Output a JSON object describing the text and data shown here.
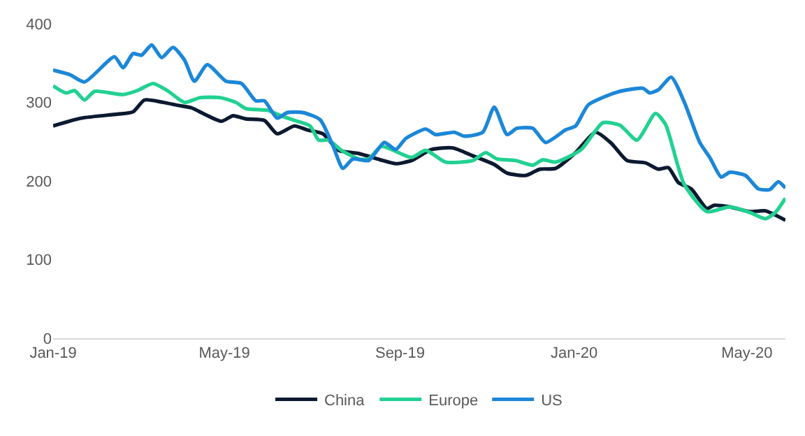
{
  "chart_data": {
    "type": "line",
    "xlim": [
      "2019-01-01",
      "2020-05-28"
    ],
    "xticks": [
      {
        "value": "2019-01-01",
        "label": "Jan-19"
      },
      {
        "value": "2019-05-01",
        "label": "May-19"
      },
      {
        "value": "2019-09-01",
        "label": "Sep-19"
      },
      {
        "value": "2020-01-01",
        "label": "Jan-20"
      },
      {
        "value": "2020-05-01",
        "label": "May-20"
      }
    ],
    "ylim": [
      0,
      400
    ],
    "yticks": [
      0,
      100,
      200,
      300,
      400
    ],
    "grid": false,
    "legend": "bottom",
    "marker": "none",
    "line_style": "solid",
    "series": [
      {
        "name": "China",
        "color": "#0c1a30",
        "x": [
          "2019-01-01",
          "2019-01-21",
          "2019-02-15",
          "2019-02-26",
          "2019-03-06",
          "2019-03-19",
          "2019-03-30",
          "2019-04-08",
          "2019-04-17",
          "2019-04-29",
          "2019-05-07",
          "2019-05-16",
          "2019-05-29",
          "2019-06-07",
          "2019-06-19",
          "2019-06-28",
          "2019-07-09",
          "2019-07-20",
          "2019-08-03",
          "2019-08-18",
          "2019-08-29",
          "2019-09-09",
          "2019-09-23",
          "2019-10-08",
          "2019-10-22",
          "2019-11-06",
          "2019-11-15",
          "2019-11-28",
          "2019-12-08",
          "2019-12-19",
          "2020-01-02",
          "2020-01-16",
          "2020-01-27",
          "2020-02-07",
          "2020-02-20",
          "2020-02-29",
          "2020-03-07",
          "2020-03-14",
          "2020-03-23",
          "2020-04-03",
          "2020-04-08",
          "2020-04-19",
          "2020-05-03",
          "2020-05-14",
          "2020-05-28"
        ],
        "values": [
          270,
          280,
          285,
          288,
          303,
          300,
          296,
          293,
          285,
          276,
          283,
          279,
          277,
          260,
          270,
          265,
          260,
          239,
          235,
          227,
          222,
          226,
          240,
          242,
          232,
          221,
          210,
          207,
          215,
          216,
          236,
          262,
          248,
          226,
          223,
          215,
          217,
          198,
          190,
          165,
          169,
          167,
          161,
          162,
          150
        ]
      },
      {
        "name": "Europe",
        "color": "#22d192",
        "x": [
          "2019-01-01",
          "2019-01-10",
          "2019-01-16",
          "2019-01-23",
          "2019-01-30",
          "2019-02-19",
          "2019-03-01",
          "2019-03-12",
          "2019-03-22",
          "2019-04-03",
          "2019-04-14",
          "2019-04-28",
          "2019-05-09",
          "2019-05-16",
          "2019-05-31",
          "2019-06-11",
          "2019-06-21",
          "2019-06-30",
          "2019-07-06",
          "2019-07-13",
          "2019-07-22",
          "2019-08-03",
          "2019-08-10",
          "2019-08-19",
          "2019-09-09",
          "2019-09-19",
          "2019-10-03",
          "2019-10-22",
          "2019-10-31",
          "2019-11-08",
          "2019-11-21",
          "2019-12-03",
          "2019-12-10",
          "2019-12-19",
          "2020-01-06",
          "2020-01-21",
          "2020-02-02",
          "2020-02-14",
          "2020-02-27",
          "2020-03-05",
          "2020-03-18",
          "2020-04-03",
          "2020-04-19",
          "2020-05-03",
          "2020-05-14",
          "2020-05-21",
          "2020-05-28"
        ],
        "values": [
          321,
          312,
          315,
          303,
          314,
          310,
          315,
          324,
          315,
          300,
          306,
          306,
          300,
          292,
          290,
          282,
          276,
          270,
          252,
          252,
          239,
          228,
          228,
          244,
          230,
          239,
          224,
          226,
          236,
          228,
          226,
          220,
          227,
          224,
          240,
          274,
          271,
          252,
          286,
          272,
          196,
          161,
          167,
          160,
          152,
          160,
          178
        ]
      },
      {
        "name": "US",
        "color": "#1c87d8",
        "x": [
          "2019-01-01",
          "2019-01-13",
          "2019-01-23",
          "2019-02-13",
          "2019-02-19",
          "2019-02-26",
          "2019-03-04",
          "2019-03-11",
          "2019-03-18",
          "2019-03-26",
          "2019-04-03",
          "2019-04-10",
          "2019-04-19",
          "2019-05-02",
          "2019-05-13",
          "2019-05-23",
          "2019-05-29",
          "2019-06-07",
          "2019-06-14",
          "2019-06-25",
          "2019-07-07",
          "2019-07-16",
          "2019-07-23",
          "2019-07-30",
          "2019-08-10",
          "2019-08-21",
          "2019-08-29",
          "2019-09-05",
          "2019-09-19",
          "2019-09-26",
          "2019-10-09",
          "2019-10-16",
          "2019-10-29",
          "2019-11-06",
          "2019-11-15",
          "2019-11-22",
          "2019-12-03",
          "2019-12-12",
          "2019-12-26",
          "2020-01-02",
          "2020-01-11",
          "2020-01-31",
          "2020-02-18",
          "2020-02-23",
          "2020-02-29",
          "2020-03-09",
          "2020-03-18",
          "2020-03-29",
          "2020-04-05",
          "2020-04-13",
          "2020-04-19",
          "2020-04-30",
          "2020-05-09",
          "2020-05-17",
          "2020-05-23",
          "2020-05-28"
        ],
        "values": [
          341,
          335,
          326,
          358,
          344,
          362,
          360,
          373,
          357,
          370,
          354,
          327,
          348,
          327,
          324,
          302,
          302,
          280,
          287,
          287,
          278,
          245,
          216,
          228,
          226,
          249,
          240,
          254,
          266,
          259,
          262,
          257,
          262,
          294,
          259,
          267,
          267,
          249,
          265,
          270,
          297,
          313,
          318,
          312,
          316,
          332,
          301,
          249,
          230,
          205,
          211,
          207,
          190,
          189,
          199,
          191
        ]
      }
    ]
  }
}
